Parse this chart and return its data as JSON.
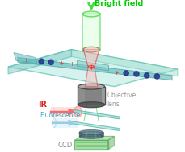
{
  "bg_color": "#ffffff",
  "chip_face_color": "#b0e8e0",
  "chip_edge_color": "#55bbaa",
  "chip_side_color": "#88d4cc",
  "channel_color": "#66bbbb",
  "channel_edge": "#339999",
  "cell_red": "#ee3333",
  "cell_blue": "#223388",
  "cyl_green_face": "#ccffcc",
  "cyl_green_edge": "#33cc33",
  "cone_face": "#ffbbbb",
  "cone_edge": "#cc3333",
  "obj_face": "#888888",
  "obj_edge": "#444444",
  "obj_top_face": "#aaaaaa",
  "obj_bot_face": "#555555",
  "ir_beam_face": "#ffcccc",
  "ir_beam_edge": "#ffaaaa",
  "ir_spot_face": "#ffaaaa",
  "fl_beam_face": "#ddeeff",
  "fl_beam_edge": "#aaccdd",
  "dichroic1_face": "#99ddcc",
  "dichroic1_edge": "#44aaaa",
  "dichroic2_face": "#99ddcc",
  "dichroic2_edge": "#44aaaa",
  "lens_face": "#aaddee",
  "lens_edge": "#55aabb",
  "ccd_face": "#88cc88",
  "ccd_edge": "#44aa44",
  "ccd_lines": "#44bb44",
  "green_beam": "#44cc44",
  "arrow_green": "#44dd44",
  "text_bright": "Bright field",
  "text_objective": "Objective\nlens",
  "text_ir": "IR",
  "text_fluo": "Fluorescence",
  "text_ccd": "CCD",
  "col_bright": "#00cc00",
  "col_obj": "#999999",
  "col_ir": "#dd2222",
  "col_fluo": "#33aacc",
  "col_ccd": "#888888"
}
